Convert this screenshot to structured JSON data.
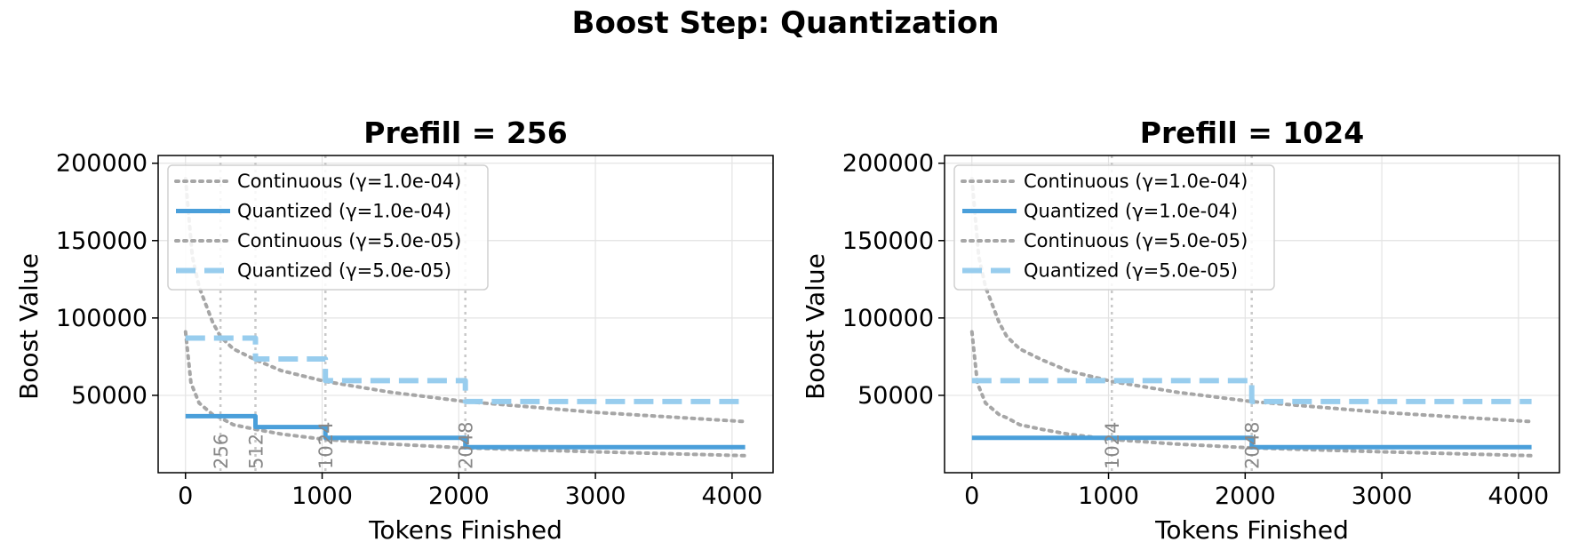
{
  "figure": {
    "suptitle": "Boost Step: Quantization"
  },
  "colors": {
    "continuous": "#a6a6a6",
    "quantized": "#4a9fda",
    "quantized_light": "#98cdee",
    "marker_line": "#c8c8c8",
    "marker_text": "#888888",
    "grid": "#e3e3e3"
  },
  "chart_data": [
    {
      "type": "line",
      "title": "Prefill = 256",
      "xlabel": "Tokens Finished",
      "ylabel": "Boost Value",
      "xlim": [
        -200,
        4300
      ],
      "ylim": [
        0,
        205000
      ],
      "xticks": [
        0,
        1000,
        2000,
        3000,
        4000
      ],
      "yticks": [
        50000,
        100000,
        150000,
        200000
      ],
      "grid": true,
      "legend_position": "upper-left",
      "markers": [
        256,
        512,
        1024,
        2048
      ],
      "marker_labels": [
        "256",
        "512",
        "1024",
        "2048"
      ],
      "series": [
        {
          "name": "Continuous (γ=1.0e-04)",
          "style": "dotted",
          "color": "#a6a6a6",
          "x": [
            0,
            40,
            100,
            200,
            256,
            350,
            512,
            700,
            1024,
            1500,
            2048,
            3000,
            4096
          ],
          "y": [
            91000,
            58000,
            45000,
            37500,
            35500,
            31000,
            28000,
            25000,
            21500,
            18500,
            16000,
            13500,
            11000
          ]
        },
        {
          "name": "Quantized (γ=1.0e-04)",
          "style": "solid",
          "color": "#4a9fda",
          "x": [
            0,
            512,
            512,
            1024,
            1024,
            2048,
            2048,
            4096
          ],
          "y": [
            36500,
            36500,
            29500,
            29500,
            22500,
            22500,
            16500,
            16500
          ]
        },
        {
          "name": "Continuous (γ=5.0e-05)",
          "style": "dotted",
          "color": "#a6a6a6",
          "x": [
            0,
            50,
            100,
            200,
            256,
            350,
            512,
            700,
            1024,
            1500,
            2048,
            3000,
            4096
          ],
          "y": [
            190000,
            140000,
            120000,
            97000,
            88000,
            80000,
            73000,
            66000,
            59000,
            52000,
            46000,
            39000,
            33000
          ]
        },
        {
          "name": "Quantized (γ=5.0e-05)",
          "style": "dashed",
          "color": "#98cdee",
          "x": [
            0,
            512,
            512,
            1024,
            1024,
            2048,
            2048,
            4096
          ],
          "y": [
            87000,
            87000,
            73500,
            73500,
            59500,
            59500,
            46000,
            46000
          ]
        }
      ]
    },
    {
      "type": "line",
      "title": "Prefill = 1024",
      "xlabel": "Tokens Finished",
      "ylabel": "Boost Value",
      "xlim": [
        -200,
        4300
      ],
      "ylim": [
        0,
        205000
      ],
      "xticks": [
        0,
        1000,
        2000,
        3000,
        4000
      ],
      "yticks": [
        50000,
        100000,
        150000,
        200000
      ],
      "grid": true,
      "legend_position": "upper-left",
      "markers": [
        1024,
        2048
      ],
      "marker_labels": [
        "1024",
        "2048"
      ],
      "series": [
        {
          "name": "Continuous (γ=1.0e-04)",
          "style": "dotted",
          "color": "#a6a6a6",
          "x": [
            0,
            40,
            100,
            200,
            256,
            350,
            512,
            700,
            1024,
            1500,
            2048,
            3000,
            4096
          ],
          "y": [
            91000,
            58000,
            45000,
            37500,
            35500,
            31000,
            28000,
            25000,
            21500,
            18500,
            16000,
            13500,
            11000
          ]
        },
        {
          "name": "Quantized (γ=1.0e-04)",
          "style": "solid",
          "color": "#4a9fda",
          "x": [
            0,
            2048,
            2048,
            4096
          ],
          "y": [
            22500,
            22500,
            16500,
            16500
          ]
        },
        {
          "name": "Continuous (γ=5.0e-05)",
          "style": "dotted",
          "color": "#a6a6a6",
          "x": [
            0,
            50,
            100,
            200,
            256,
            350,
            512,
            700,
            1024,
            1500,
            2048,
            3000,
            4096
          ],
          "y": [
            190000,
            140000,
            120000,
            97000,
            88000,
            80000,
            73000,
            66000,
            59000,
            52000,
            46000,
            39000,
            33000
          ]
        },
        {
          "name": "Quantized (γ=5.0e-05)",
          "style": "dashed",
          "color": "#98cdee",
          "x": [
            0,
            2048,
            2048,
            4096
          ],
          "y": [
            59500,
            59500,
            46000,
            46000
          ]
        }
      ]
    }
  ]
}
